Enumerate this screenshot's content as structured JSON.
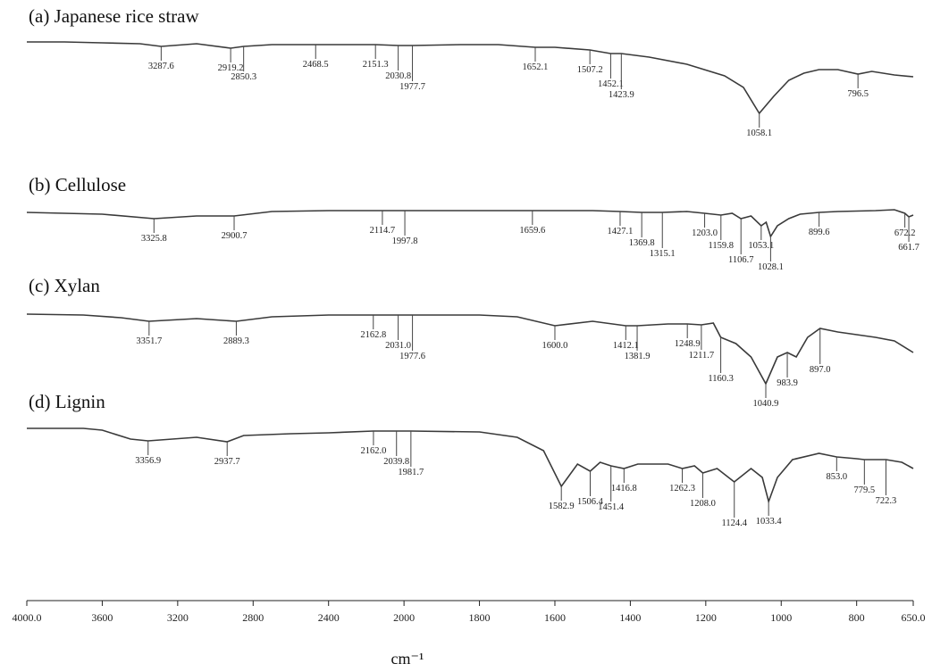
{
  "chart_data": [
    {
      "type": "line",
      "title": "(a) Japanese rice straw",
      "color": "#3a3a3a",
      "xlim": [
        4000,
        650
      ],
      "xscale": {
        "break": 2000,
        "factor": 2
      },
      "ylim": [
        0,
        100
      ],
      "x": [
        4000,
        3800,
        3600,
        3400,
        3287.6,
        3100,
        2919.2,
        2850.3,
        2700,
        2468.5,
        2300,
        2151.3,
        2030.8,
        1977.7,
        1850,
        1750,
        1652.1,
        1600,
        1507.2,
        1452.1,
        1423.9,
        1350,
        1250,
        1150,
        1100,
        1058.1,
        1020,
        980,
        940,
        900,
        850,
        796.5,
        760,
        700,
        650
      ],
      "values": [
        93,
        93,
        92,
        91,
        88,
        91,
        86,
        88,
        90,
        90,
        90,
        90,
        89,
        89,
        90,
        90,
        87,
        87,
        84,
        80,
        80,
        76,
        68,
        55,
        42,
        13,
        32,
        50,
        58,
        62,
        62,
        57,
        60,
        56,
        54
      ],
      "peaks": [
        3287.6,
        2919.2,
        2850.3,
        2468.5,
        2151.3,
        2030.8,
        1977.7,
        1652.1,
        1507.2,
        1452.1,
        1423.9,
        1058.1,
        796.5
      ]
    },
    {
      "type": "line",
      "title": "(b) Cellulose",
      "color": "#3a3a3a",
      "xlim": [
        4000,
        650
      ],
      "xscale": {
        "break": 2000,
        "factor": 2
      },
      "ylim": [
        0,
        100
      ],
      "x": [
        4000,
        3800,
        3600,
        3325.8,
        3100,
        2900.7,
        2700,
        2400,
        2114.7,
        1997.8,
        1800,
        1659.6,
        1500,
        1427.1,
        1369.8,
        1315.1,
        1250,
        1203,
        1159.8,
        1130,
        1106.7,
        1080,
        1053.1,
        1040,
        1028.1,
        1010,
        980,
        950,
        899.6,
        850,
        750,
        700,
        672.2,
        661.7,
        650
      ],
      "values": [
        77,
        76,
        75,
        70,
        73,
        73,
        78,
        79,
        79,
        79,
        79,
        79,
        79,
        78,
        77,
        77,
        78,
        76,
        74,
        76,
        70,
        73,
        62,
        66,
        50,
        62,
        70,
        75,
        77,
        78,
        79,
        80,
        76,
        72,
        74
      ],
      "peaks": [
        3325.8,
        2900.7,
        2114.7,
        1997.8,
        1659.6,
        1427.1,
        1369.8,
        1315.1,
        {
          "value": 1203,
          "label": "1203.0"
        },
        1159.8,
        1106.7,
        1053.1,
        1028.1,
        899.6,
        672.2,
        661.7
      ]
    },
    {
      "type": "line",
      "title": "(c) Xylan",
      "color": "#3a3a3a",
      "xlim": [
        4000,
        650
      ],
      "xscale": {
        "break": 2000,
        "factor": 2
      },
      "ylim": [
        0,
        100
      ],
      "x": [
        4000,
        3700,
        3500,
        3351.7,
        3100,
        2889.3,
        2700,
        2400,
        2162.8,
        2031,
        1977.6,
        1800,
        1700,
        1600,
        1500,
        1412.1,
        1381.9,
        1300,
        1248.9,
        1211.7,
        1180,
        1160.3,
        1120,
        1080,
        1040.9,
        1010,
        983.9,
        960,
        930,
        897,
        850,
        750,
        700,
        650
      ],
      "values": [
        88,
        87,
        84,
        80,
        83,
        80,
        85,
        87,
        87,
        87,
        87,
        87,
        85,
        75,
        80,
        75,
        75,
        77,
        77,
        76,
        78,
        62,
        55,
        40,
        10,
        40,
        45,
        40,
        62,
        72,
        68,
        62,
        58,
        45
      ],
      "peaks": [
        3351.7,
        2889.3,
        2162.8,
        {
          "value": 2031,
          "label": "2031.0"
        },
        1977.6,
        {
          "value": 1600,
          "label": "1600.0"
        },
        1412.1,
        1381.9,
        1248.9,
        1211.7,
        1160.3,
        1040.9,
        983.9,
        {
          "value": 897,
          "label": "897.0"
        }
      ]
    },
    {
      "type": "line",
      "title": "(d) Lignin",
      "color": "#3a3a3a",
      "xlim": [
        4000,
        650
      ],
      "xscale": {
        "break": 2000,
        "factor": 2
      },
      "ylim": [
        0,
        100
      ],
      "x": [
        4000,
        3700,
        3600,
        3450,
        3356.9,
        3100,
        2937.7,
        2850,
        2600,
        2400,
        2162,
        2039.8,
        1981.7,
        1800,
        1700,
        1630,
        1582.9,
        1540,
        1506.4,
        1480,
        1451.4,
        1416.8,
        1380,
        1300,
        1262.3,
        1230,
        1208,
        1170,
        1124.4,
        1080,
        1050,
        1033.4,
        1010,
        970,
        900,
        853,
        800,
        779.5,
        722.3,
        680,
        650
      ],
      "values": [
        90,
        90,
        88,
        78,
        76,
        80,
        75,
        82,
        84,
        85,
        87,
        87,
        87,
        86,
        80,
        65,
        25,
        50,
        42,
        52,
        48,
        45,
        50,
        50,
        45,
        48,
        40,
        45,
        30,
        45,
        35,
        8,
        35,
        55,
        62,
        58,
        56,
        55,
        55,
        52,
        45
      ],
      "peaks": [
        3356.9,
        2937.7,
        {
          "value": 2162,
          "label": "2162.0"
        },
        2039.8,
        1981.7,
        1582.9,
        1506.4,
        1451.4,
        1416.8,
        1262.3,
        {
          "value": 1208,
          "label": "1208.0"
        },
        1124.4,
        1033.4,
        {
          "value": 853,
          "label": "853.0"
        },
        779.5,
        722.3
      ],
      "xticks": [
        {
          "value": 4000,
          "label": "4000.0"
        },
        3600,
        3200,
        2800,
        2400,
        2000,
        1800,
        1600,
        1400,
        1200,
        1000,
        800,
        {
          "value": 650,
          "label": "650.0"
        }
      ],
      "xlabel": "cm⁻¹"
    }
  ]
}
